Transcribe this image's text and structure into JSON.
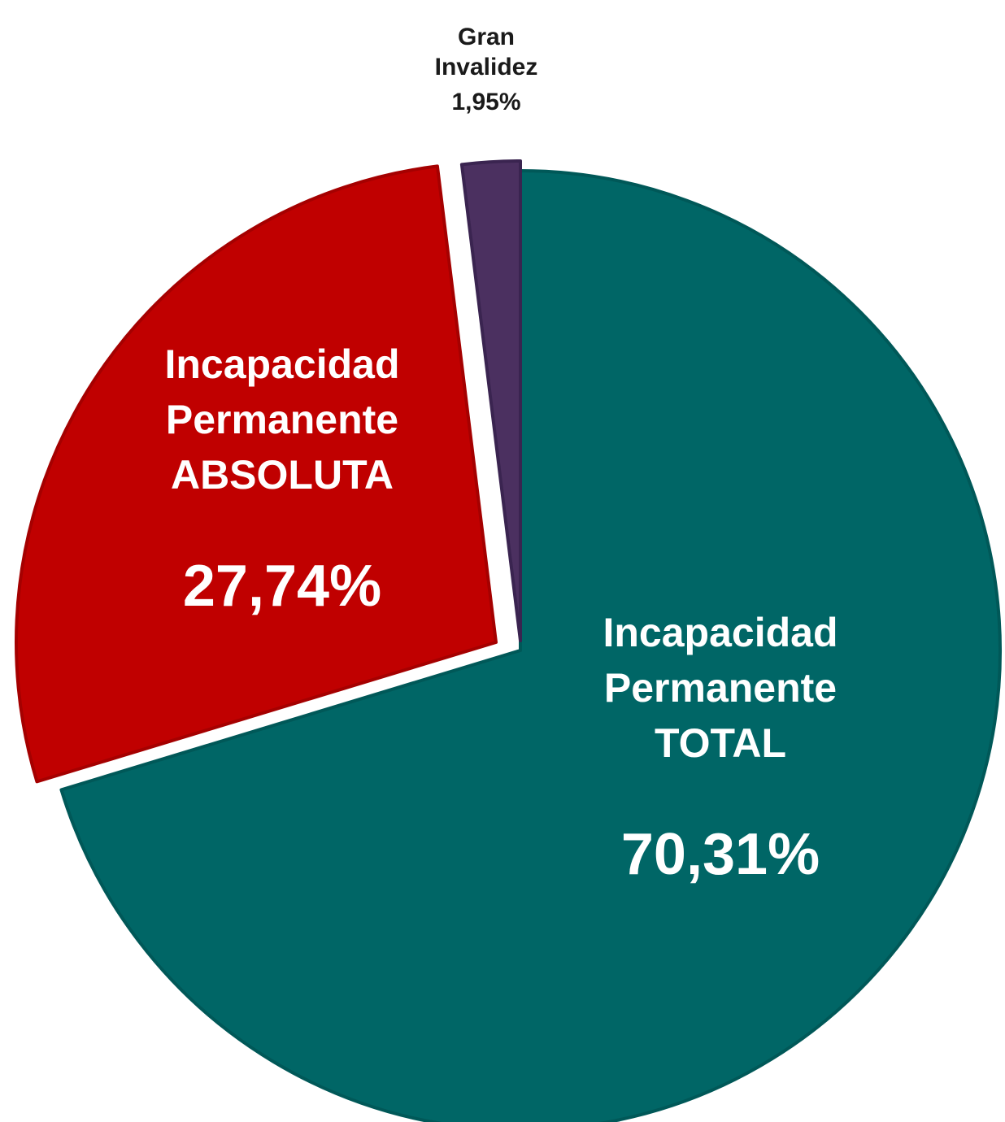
{
  "chart_data": {
    "type": "pie",
    "title": "",
    "slices": [
      {
        "label_lines": [
          "Incapacidad",
          "Permanente",
          "TOTAL"
        ],
        "value": 70.31,
        "value_label": "70,31%",
        "color": "#006666",
        "stroke": "#005858",
        "text_color": "#ffffff"
      },
      {
        "label_lines": [
          "Incapacidad",
          "Permanente",
          "ABSOLUTA"
        ],
        "value": 27.74,
        "value_label": "27,74%",
        "color": "#c00000",
        "stroke": "#a50000",
        "text_color": "#ffffff"
      },
      {
        "label_lines": [
          "Gran",
          "Invalidez"
        ],
        "value": 1.95,
        "value_label": "1,95%",
        "color": "#4b3060",
        "stroke": "#3a2450",
        "text_color": "#1a1a1a"
      }
    ],
    "start_angle_deg": 0,
    "direction": "clockwise",
    "exploded": true,
    "legend": "none"
  }
}
